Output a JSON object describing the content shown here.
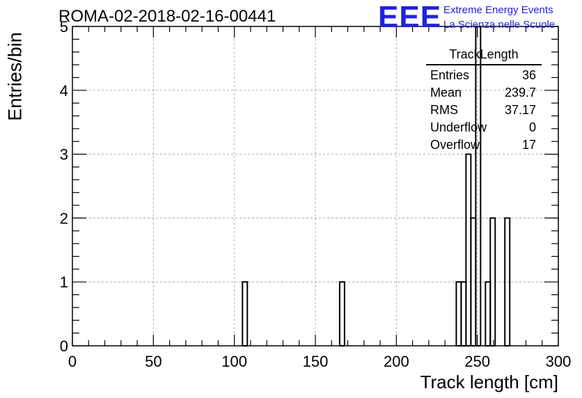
{
  "header": {
    "run_title": "ROMA-02-2018-02-16-00441",
    "logo_mark": "EEE",
    "logo_line1": "Extreme Energy Events",
    "logo_line2": "La Scienza nelle Scuole"
  },
  "stats_box": {
    "title": "TrackLength",
    "rows": [
      {
        "label": "Entries",
        "value": "36"
      },
      {
        "label": "Mean",
        "value": "239.7"
      },
      {
        "label": "RMS",
        "value": "37.17"
      },
      {
        "label": "Underflow",
        "value": "0"
      },
      {
        "label": "Overflow",
        "value": "17"
      }
    ]
  },
  "chart_data": {
    "type": "bar",
    "histogram": true,
    "xlabel": "Track length [cm]",
    "ylabel": "Entries/bin",
    "xlim": [
      0,
      300
    ],
    "ylim": [
      0,
      5
    ],
    "grid": true,
    "bin_width": 3,
    "x_ticks": [
      0,
      50,
      100,
      150,
      200,
      250,
      300
    ],
    "y_ticks": [
      0,
      1,
      2,
      3,
      4,
      5
    ],
    "bins": [
      {
        "x": 105,
        "count": 1
      },
      {
        "x": 165,
        "count": 1
      },
      {
        "x": 237,
        "count": 1
      },
      {
        "x": 240,
        "count": 1
      },
      {
        "x": 243,
        "count": 3
      },
      {
        "x": 246,
        "count": 2
      },
      {
        "x": 249,
        "count": 5
      },
      {
        "x": 255,
        "count": 1
      },
      {
        "x": 258,
        "count": 2
      },
      {
        "x": 267,
        "count": 2
      }
    ],
    "line_color": "#000000",
    "grid_color": "#aaaaaa"
  }
}
